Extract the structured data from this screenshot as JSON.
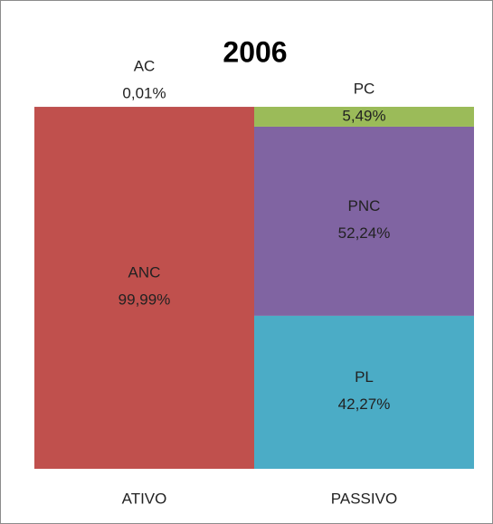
{
  "chart_data": {
    "type": "stacked_bar",
    "title": "2006",
    "categories": [
      "ATIVO",
      "PASSIVO"
    ],
    "series": [
      {
        "name": "ANC",
        "color": "#c0504d",
        "values": [
          99.99,
          null
        ],
        "value_labels": [
          "99,99%",
          null
        ]
      },
      {
        "name": "AC",
        "color": "#4f81bd",
        "values": [
          0.01,
          null
        ],
        "value_labels": [
          "0,01%",
          null
        ]
      },
      {
        "name": "PL",
        "color": "#4bacc6",
        "values": [
          null,
          42.27
        ],
        "value_labels": [
          null,
          "42,27%"
        ]
      },
      {
        "name": "PNC",
        "color": "#8064a2",
        "values": [
          null,
          52.24
        ],
        "value_labels": [
          null,
          "52,24%"
        ]
      },
      {
        "name": "PC",
        "color": "#9bbb59",
        "values": [
          null,
          5.49
        ],
        "value_labels": [
          null,
          "5,49%"
        ]
      }
    ]
  }
}
